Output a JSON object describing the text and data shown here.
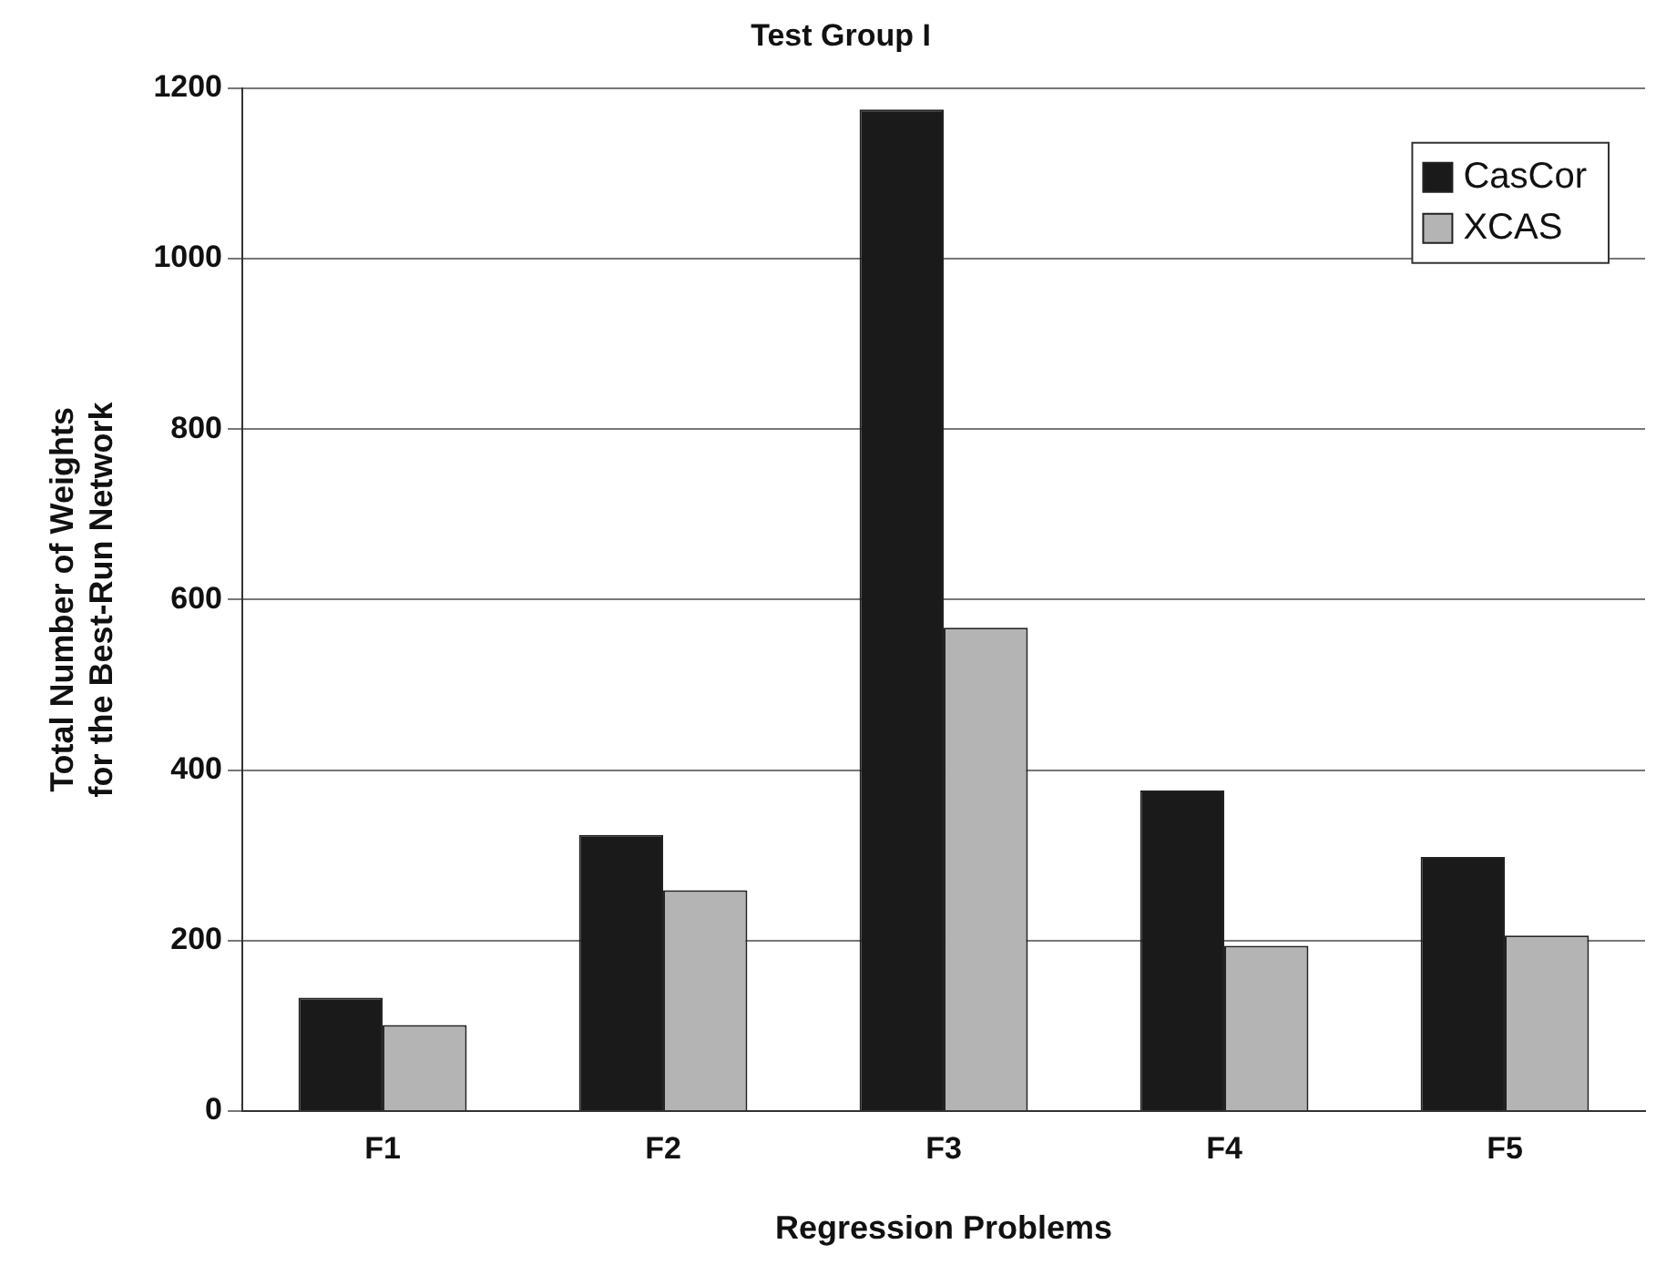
{
  "chart_data": {
    "type": "bar",
    "title": "Test Group I",
    "xlabel": "Regression Problems",
    "ylabel": "Total Number of Weights\nfor the Best-Run Network",
    "categories": [
      "F1",
      "F2",
      "F3",
      "F4",
      "F5"
    ],
    "series": [
      {
        "name": "CasCor",
        "color": "#1a1a1a",
        "values": [
          133,
          324,
          1175,
          376,
          298
        ]
      },
      {
        "name": "XCAS",
        "color": "#b4b4b4",
        "values": [
          101,
          259,
          567,
          194,
          206
        ]
      }
    ],
    "ylim": [
      0,
      1200
    ],
    "yticks": [
      0,
      200,
      400,
      600,
      800,
      1000,
      1200
    ],
    "grid": "y",
    "legend": "top right"
  }
}
